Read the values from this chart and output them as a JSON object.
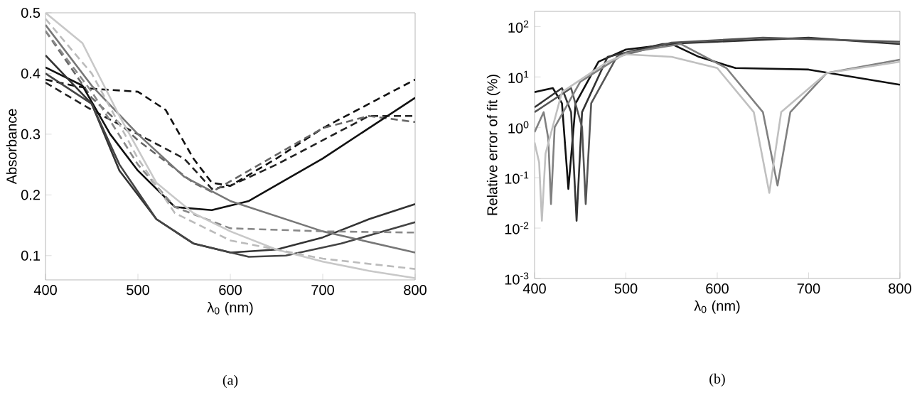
{
  "chart_data": [
    {
      "type": "line",
      "annotations": [
        "(a)"
      ],
      "xlabel": "λ$_{0}$ (nm)",
      "ylabel": "Absorbance",
      "xlim": [
        400,
        800
      ],
      "ylim": [
        0.06,
        0.5
      ],
      "xticks": [
        400,
        500,
        600,
        700,
        800
      ],
      "yticks": [
        0.1,
        0.2,
        0.3,
        0.4,
        0.5
      ],
      "series": [
        {
          "color": "#111111",
          "line_style": "dashed",
          "x": [
            400,
            430,
            450,
            500,
            530,
            560,
            580,
            600,
            650,
            700,
            750,
            800
          ],
          "values": [
            0.39,
            0.38,
            0.375,
            0.37,
            0.34,
            0.26,
            0.22,
            0.215,
            0.26,
            0.31,
            0.35,
            0.39
          ]
        },
        {
          "color": "#222222",
          "line_style": "dashed",
          "x": [
            400,
            450,
            500,
            550,
            580,
            600,
            650,
            700,
            750,
            800
          ],
          "values": [
            0.385,
            0.34,
            0.3,
            0.26,
            0.21,
            0.215,
            0.25,
            0.29,
            0.33,
            0.33
          ]
        },
        {
          "color": "#666666",
          "line_style": "dashed",
          "x": [
            400,
            450,
            500,
            560,
            580,
            620,
            700,
            750,
            800
          ],
          "values": [
            0.47,
            0.36,
            0.29,
            0.22,
            0.205,
            0.24,
            0.31,
            0.33,
            0.32
          ]
        },
        {
          "color": "#111111",
          "line_style": "solid",
          "x": [
            400,
            440,
            470,
            500,
            540,
            580,
            620,
            700,
            750,
            800
          ],
          "values": [
            0.41,
            0.38,
            0.3,
            0.24,
            0.18,
            0.175,
            0.19,
            0.26,
            0.31,
            0.36
          ]
        },
        {
          "color": "#333333",
          "line_style": "solid",
          "x": [
            400,
            450,
            480,
            520,
            560,
            600,
            650,
            700,
            750,
            800
          ],
          "values": [
            0.43,
            0.35,
            0.24,
            0.16,
            0.12,
            0.105,
            0.11,
            0.13,
            0.16,
            0.185
          ]
        },
        {
          "color": "#444444",
          "line_style": "solid",
          "x": [
            400,
            450,
            480,
            520,
            560,
            620,
            660,
            720,
            800
          ],
          "values": [
            0.4,
            0.35,
            0.25,
            0.16,
            0.12,
            0.098,
            0.1,
            0.12,
            0.155
          ]
        },
        {
          "color": "#777777",
          "line_style": "solid",
          "x": [
            400,
            450,
            500,
            550,
            600,
            700,
            800
          ],
          "values": [
            0.48,
            0.38,
            0.3,
            0.23,
            0.19,
            0.14,
            0.105
          ]
        },
        {
          "color": "#888888",
          "line_style": "dashed",
          "x": [
            400,
            450,
            500,
            540,
            600,
            700,
            800
          ],
          "values": [
            0.47,
            0.37,
            0.25,
            0.18,
            0.145,
            0.14,
            0.138
          ]
        },
        {
          "color": "#c8c8c8",
          "line_style": "solid",
          "x": [
            400,
            440,
            480,
            520,
            560,
            600,
            650,
            700,
            750,
            800
          ],
          "values": [
            0.5,
            0.45,
            0.33,
            0.22,
            0.17,
            0.14,
            0.11,
            0.09,
            0.075,
            0.063
          ]
        },
        {
          "color": "#bbbbbb",
          "line_style": "dashed",
          "x": [
            400,
            450,
            500,
            540,
            600,
            700,
            800
          ],
          "values": [
            0.49,
            0.4,
            0.26,
            0.17,
            0.125,
            0.095,
            0.078
          ]
        }
      ]
    },
    {
      "type": "line",
      "annotations": [
        "(b)"
      ],
      "xlabel": "λ$_{0}$ (nm)",
      "ylabel": "Relative error of fit (%)",
      "log": "y",
      "xlim": [
        400,
        800
      ],
      "ylim": [
        0.001,
        200
      ],
      "xticks": [
        400,
        500,
        600,
        700,
        800
      ],
      "yticks": [
        {
          "value": 0.001,
          "label": "10$^{-3}$"
        },
        {
          "value": 0.01,
          "label": "10$^{-2}$"
        },
        {
          "value": 0.1,
          "label": "10$^{-1}$"
        },
        {
          "value": 1,
          "label": "10$^{0}$"
        },
        {
          "value": 10,
          "label": "10$^{1}$"
        },
        {
          "value": 100,
          "label": "10$^{2}$"
        }
      ],
      "series": [
        {
          "color": "#111111",
          "line_style": "solid",
          "x": [
            400,
            420,
            430,
            437,
            445,
            470,
            500,
            550,
            580,
            620,
            700,
            800
          ],
          "values": [
            5,
            6,
            3,
            0.06,
            3,
            20,
            35,
            45,
            25,
            15,
            14,
            7
          ]
        },
        {
          "color": "#333333",
          "line_style": "solid",
          "x": [
            400,
            430,
            440,
            446,
            452,
            480,
            540,
            600,
            700,
            800
          ],
          "values": [
            2.5,
            6,
            2,
            0.014,
            2,
            25,
            45,
            50,
            60,
            45
          ]
        },
        {
          "color": "#555555",
          "line_style": "solid",
          "x": [
            400,
            440,
            452,
            456,
            462,
            490,
            550,
            650,
            800
          ],
          "values": [
            2,
            6,
            1,
            0.03,
            3,
            25,
            48,
            60,
            50
          ]
        },
        {
          "color": "#808080",
          "line_style": "solid",
          "x": [
            400,
            410,
            415,
            418,
            422,
            450,
            500,
            560,
            610,
            650,
            666,
            680,
            720,
            800
          ],
          "values": [
            0.8,
            2,
            0.6,
            0.03,
            1,
            8,
            30,
            45,
            15,
            2,
            0.07,
            2,
            12,
            22
          ]
        },
        {
          "color": "#c0c0c0",
          "line_style": "solid",
          "x": [
            400,
            405,
            408,
            412,
            430,
            480,
            500,
            550,
            600,
            640,
            657,
            670,
            720,
            800
          ],
          "values": [
            0.5,
            0.2,
            0.014,
            0.3,
            5,
            20,
            28,
            25,
            15,
            2,
            0.05,
            2,
            12,
            20
          ]
        }
      ]
    }
  ]
}
